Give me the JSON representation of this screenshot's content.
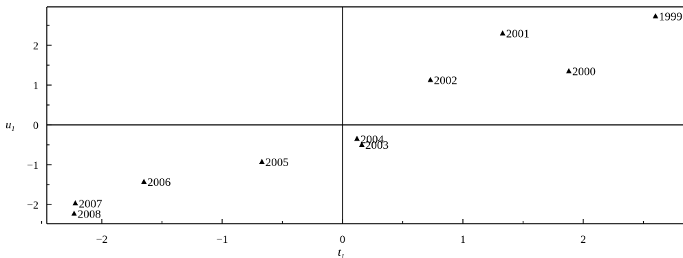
{
  "chart_data": {
    "type": "scatter",
    "title": "",
    "xlabel": "t",
    "xlabel_subscript": "1",
    "ylabel": "u",
    "ylabel_subscript": "1",
    "xlim": [
      -2.5,
      2.85
    ],
    "ylim": [
      -2.5,
      3.0
    ],
    "x_ticks": [
      -2,
      -1,
      0,
      1,
      2
    ],
    "x_tick_labels": [
      "−2",
      "−1",
      "0",
      "1",
      "2"
    ],
    "y_ticks": [
      -2,
      -1,
      0,
      1,
      2
    ],
    "y_tick_labels": [
      "−2",
      "−1",
      "0",
      "1",
      "2"
    ],
    "grid": false,
    "marker": "triangle",
    "points": [
      {
        "label": "1999",
        "x": 2.6,
        "y": 2.73
      },
      {
        "label": "2000",
        "x": 1.88,
        "y": 1.35
      },
      {
        "label": "2001",
        "x": 1.33,
        "y": 2.3
      },
      {
        "label": "2002",
        "x": 0.73,
        "y": 1.13
      },
      {
        "label": "2003",
        "x": 0.16,
        "y": -0.5
      },
      {
        "label": "2004",
        "x": 0.12,
        "y": -0.35
      },
      {
        "label": "2005",
        "x": -0.67,
        "y": -0.93
      },
      {
        "label": "2006",
        "x": -1.65,
        "y": -1.43
      },
      {
        "label": "2007",
        "x": -2.22,
        "y": -1.97
      },
      {
        "label": "2008",
        "x": -2.23,
        "y": -2.23
      }
    ]
  }
}
